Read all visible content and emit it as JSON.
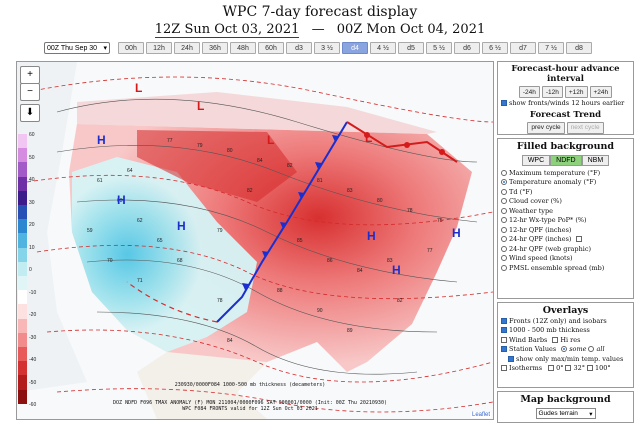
{
  "header": {
    "title": "WPC 7-day forecast display",
    "start_date": "12Z Sun Oct 03, 2021",
    "separator": "—",
    "end_date": "00Z Mon Oct 04, 2021"
  },
  "timebar": {
    "select_value": "00Z Thu Sep 30",
    "buttons": [
      "00h",
      "12h",
      "24h",
      "36h",
      "48h",
      "60h",
      "d3",
      "3 ½",
      "d4",
      "4 ½",
      "d5",
      "5 ½",
      "d6",
      "6 ½",
      "d7",
      "7 ½",
      "d8"
    ],
    "active": "d4"
  },
  "map": {
    "zoom_in": "+",
    "zoom_out": "−",
    "download": "⬇",
    "colorbar": {
      "labels": [
        "60",
        "50",
        "40",
        "30",
        "20",
        "10",
        "0",
        "-10",
        "-20",
        "-30",
        "-40",
        "-50",
        "-60"
      ],
      "colors": [
        "#f2c6f2",
        "#d58be0",
        "#a25ac8",
        "#6e2ea6",
        "#3b1a8c",
        "#264fb5",
        "#2d86d0",
        "#4fb5e0",
        "#85d4ea",
        "#c0ecf2",
        "#e0f6f6",
        "#ffffff",
        "#fde0e0",
        "#f8b6b6",
        "#f28c8c",
        "#e85a5a",
        "#d43232",
        "#b31c1c",
        "#8c1010"
      ]
    },
    "captions": [
      "230930/0000F084 1000-500 mb thickness (decameters)",
      "DOZ NDFD F096 TMAX ANOMALY (F)   MON 211004/0000F096   SAT 000001/0000 (Init: 00Z Thu 20210930)",
      "WPC F084 FRONTS valid for 12Z Sun Oct 03 2021"
    ],
    "attribution": "Leaflet",
    "highs": [
      "H",
      "H",
      "H",
      "H",
      "H",
      "H"
    ],
    "lows": [
      "L",
      "L",
      "L",
      "L"
    ]
  },
  "advance": {
    "title": "Forecast-hour advance interval",
    "buttons": [
      "-24h",
      "-12h",
      "+12h",
      "+24h"
    ],
    "show_label": "show fronts/winds 12 hours earlier",
    "show_checked": true,
    "trend_title": "Forecast Trend",
    "prev": "prev cycle",
    "next": "next cycle"
  },
  "filled": {
    "title": "Filled background",
    "sources": [
      "WPC",
      "NDFD",
      "NBM"
    ],
    "active_source": "NDFD",
    "options": [
      {
        "label": "Maximum temperature (°F)",
        "checked": false,
        "extra": ""
      },
      {
        "label": "Temperature anomaly (°F)",
        "checked": true,
        "extra": ""
      },
      {
        "label": "Td (°F)",
        "checked": false,
        "extra": ""
      },
      {
        "label": "Cloud cover (%)",
        "checked": false,
        "extra": ""
      },
      {
        "label": "Weather type",
        "checked": false,
        "extra": ""
      },
      {
        "label": "12-hr Wx-type PoP* (%)",
        "checked": false,
        "extra": ""
      },
      {
        "label": "12-hr QPF (inches)",
        "checked": false,
        "extra": ""
      },
      {
        "label": "24-hr QPF (inches)",
        "checked": false,
        "extra": "box"
      },
      {
        "label": "24-hr QPF (web graphic)",
        "checked": false,
        "extra": ""
      },
      {
        "label": "Wind speed (knots)",
        "checked": false,
        "extra": ""
      },
      {
        "label": "PMSL ensemble spread (mb)",
        "checked": false,
        "extra": ""
      }
    ]
  },
  "overlays": {
    "title": "Overlays",
    "fronts": "Fronts (12Z only) and isobars",
    "thickness": "1000 - 500 mb thickness",
    "wind": "Wind Barbs",
    "hires": "Hi res",
    "station": "Station Values",
    "some": "some",
    "all": "all",
    "show_max": "show only max/min temp. values",
    "isotherms": "Isotherms",
    "iso_a": "0°",
    "iso_b": "32°",
    "iso_c": "100°"
  },
  "mapbg": {
    "title": "Map background",
    "value": "Gudes terrain"
  }
}
